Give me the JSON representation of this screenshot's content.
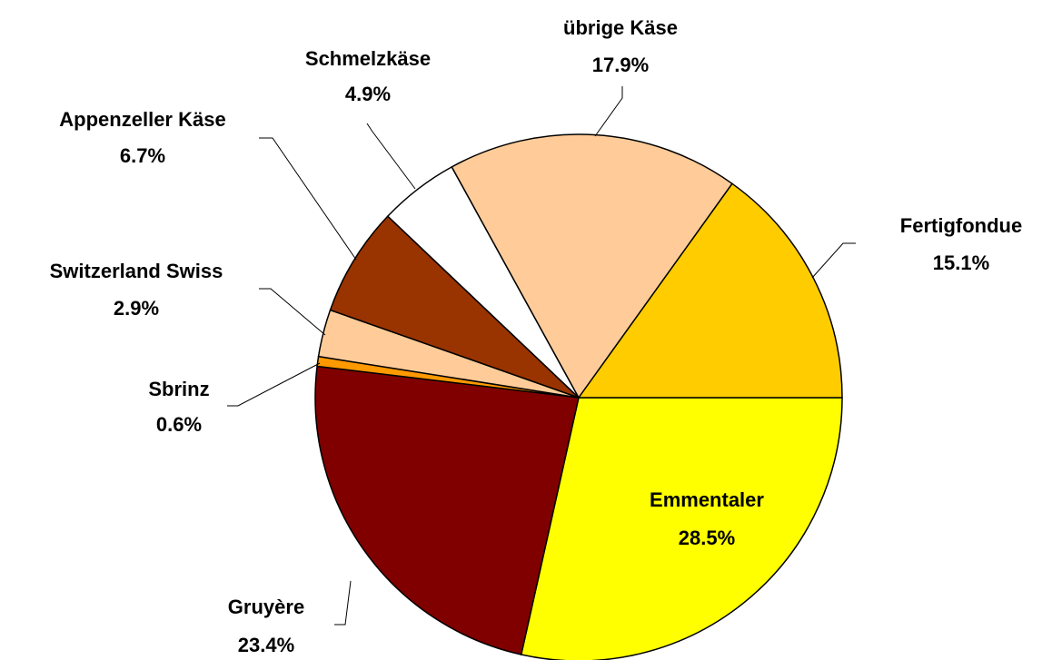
{
  "chart_data": {
    "type": "pie",
    "categories": [
      "Emmentaler",
      "Gruyère",
      "Sbrinz",
      "Switzerland Swiss",
      "Appenzeller Käse",
      "Schmelzkäse",
      "übrige Käse",
      "Fertigfondue"
    ],
    "values": [
      28.5,
      23.4,
      0.6,
      2.9,
      6.7,
      4.9,
      17.9,
      15.1
    ],
    "value_labels": [
      "28.5%",
      "23.4%",
      "0.6%",
      "2.9%",
      "6.7%",
      "4.9%",
      "17.9%",
      "15.1%"
    ],
    "colors": [
      "#ffff00",
      "#800000",
      "#ff9900",
      "#ffcc99",
      "#993300",
      "#ffffff",
      "#ffcc99",
      "#ffcc00"
    ]
  }
}
